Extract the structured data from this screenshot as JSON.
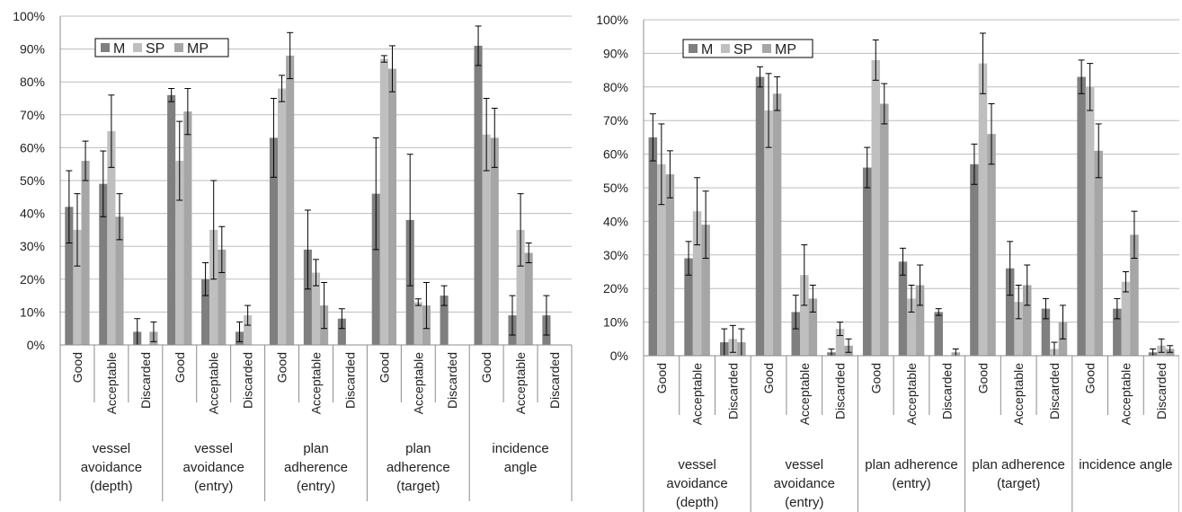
{
  "chart_data": [
    {
      "type": "bar",
      "ylim": [
        0,
        100
      ],
      "yticks": [
        "0%",
        "10%",
        "20%",
        "30%",
        "40%",
        "50%",
        "60%",
        "70%",
        "80%",
        "90%",
        "100%"
      ],
      "legend_placement": "top-left",
      "grid": true,
      "groups": [
        "vessel avoidance (depth)",
        "vessel avoidance (entry)",
        "plan adherence (entry)",
        "plan adherence (target)",
        "incidence angle"
      ],
      "group_label_lines": [
        [
          "vessel",
          "avoidance",
          "(depth)"
        ],
        [
          "vessel",
          "avoidance",
          "(entry)"
        ],
        [
          "plan",
          "adherence",
          "(entry)"
        ],
        [
          "plan",
          "adherence",
          "(target)"
        ],
        [
          "incidence",
          "angle"
        ]
      ],
      "subcategories": [
        "Good",
        "Acceptable",
        "Discarded"
      ],
      "series": [
        {
          "name": "M",
          "color": "#7f7f7f",
          "values": [
            42,
            49,
            4,
            76,
            20,
            4,
            63,
            29,
            8,
            46,
            38,
            15,
            91,
            9,
            9
          ],
          "errors": [
            11,
            10,
            4,
            2,
            5,
            3,
            12,
            12,
            3,
            17,
            20,
            3,
            6,
            6,
            6
          ]
        },
        {
          "name": "SP",
          "color": "#bfbfbf",
          "values": [
            35,
            65,
            0,
            56,
            35,
            9,
            78,
            22,
            0,
            87,
            13,
            0,
            64,
            35,
            0
          ],
          "errors": [
            11,
            11,
            0,
            12,
            15,
            3,
            4,
            4,
            0,
            1,
            1,
            0,
            11,
            11,
            0
          ]
        },
        {
          "name": "MP",
          "color": "#a6a6a6",
          "values": [
            56,
            39,
            4,
            71,
            29,
            0,
            88,
            12,
            0,
            84,
            12,
            0,
            63,
            28,
            0
          ],
          "errors": [
            6,
            7,
            3,
            7,
            7,
            0,
            7,
            7,
            0,
            7,
            7,
            0,
            9,
            3,
            0
          ]
        }
      ]
    },
    {
      "type": "bar",
      "ylim": [
        0,
        100
      ],
      "yticks": [
        "0%",
        "10%",
        "20%",
        "30%",
        "40%",
        "50%",
        "60%",
        "70%",
        "80%",
        "90%",
        "100%"
      ],
      "legend_placement": "top-left",
      "grid": true,
      "groups": [
        "vessel avoidance (depth)",
        "vessel avoidance (entry)",
        "plan adherence (entry)",
        "plan adherence (target)",
        "incidence angle"
      ],
      "group_label_lines": [
        [
          "vessel",
          "avoidance",
          "(depth)"
        ],
        [
          "vessel",
          "avoidance",
          "(entry)"
        ],
        [
          "plan adherence",
          "(entry)"
        ],
        [
          "plan adherence",
          "(target)"
        ],
        [
          "incidence angle"
        ]
      ],
      "subcategories": [
        "Good",
        "Acceptable",
        "Discarded"
      ],
      "series": [
        {
          "name": "M",
          "color": "#7f7f7f",
          "values": [
            65,
            29,
            4,
            83,
            13,
            1,
            56,
            28,
            13,
            57,
            26,
            14,
            83,
            14,
            1
          ],
          "errors": [
            7,
            5,
            4,
            3,
            5,
            1,
            6,
            4,
            1,
            6,
            8,
            3,
            5,
            3,
            1
          ]
        },
        {
          "name": "SP",
          "color": "#bfbfbf",
          "values": [
            57,
            43,
            5,
            73,
            24,
            8,
            88,
            17,
            0,
            87,
            16,
            2,
            80,
            22,
            3
          ],
          "errors": [
            12,
            10,
            4,
            11,
            9,
            2,
            6,
            4,
            0,
            9,
            5,
            2,
            7,
            3,
            2
          ]
        },
        {
          "name": "MP",
          "color": "#a6a6a6",
          "values": [
            54,
            39,
            4,
            78,
            17,
            3,
            75,
            21,
            1,
            66,
            21,
            10,
            61,
            36,
            2
          ],
          "errors": [
            7,
            10,
            4,
            5,
            4,
            2,
            6,
            6,
            1,
            9,
            6,
            5,
            8,
            7,
            1
          ]
        }
      ]
    }
  ]
}
